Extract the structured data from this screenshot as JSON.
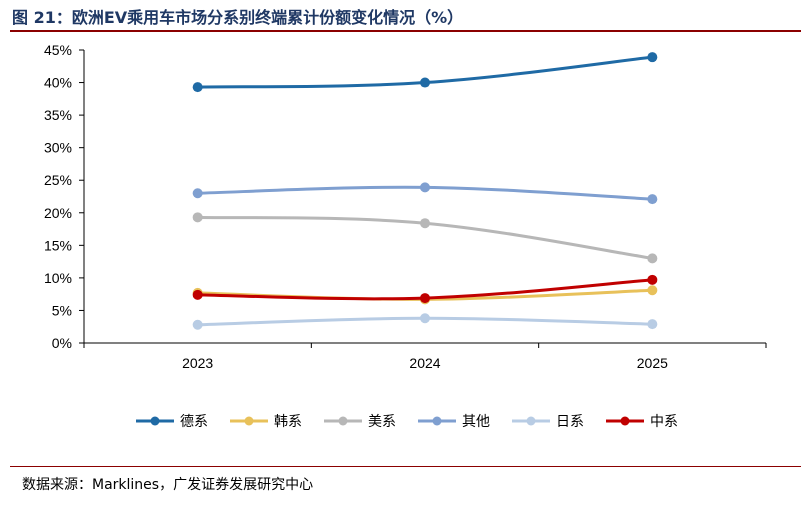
{
  "header": {
    "title": "图 21：欧洲EV乘用车市场分系别终端累计份额变化情况（%）"
  },
  "footer": {
    "source": "数据来源：Marklines，广发证券发展研究中心"
  },
  "chart_data": {
    "type": "line",
    "categories": [
      "2023",
      "2024",
      "2025"
    ],
    "ylim": [
      0,
      45
    ],
    "yticks": [
      "0%",
      "5%",
      "10%",
      "15%",
      "20%",
      "25%",
      "30%",
      "35%",
      "40%",
      "45%"
    ],
    "grid": false,
    "legend_position": "bottom",
    "series": [
      {
        "name": "德系",
        "color": "#1f6aa5",
        "values": [
          39.3,
          40.0,
          43.9
        ]
      },
      {
        "name": "韩系",
        "color": "#e8c15a",
        "values": [
          7.7,
          6.7,
          8.1
        ]
      },
      {
        "name": "美系",
        "color": "#b7b7b7",
        "values": [
          19.3,
          18.4,
          13.0
        ]
      },
      {
        "name": "其他",
        "color": "#7f9fd0",
        "values": [
          23.0,
          23.9,
          22.1
        ]
      },
      {
        "name": "日系",
        "color": "#b8cce4",
        "values": [
          2.8,
          3.8,
          2.9
        ]
      },
      {
        "name": "中系",
        "color": "#c00000",
        "values": [
          7.4,
          6.9,
          9.7
        ]
      }
    ]
  }
}
